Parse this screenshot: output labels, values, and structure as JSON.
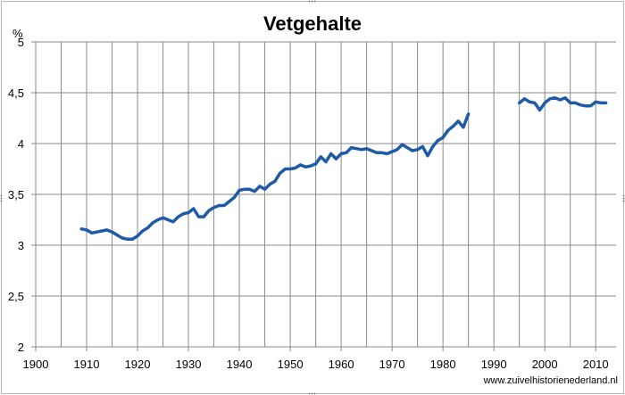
{
  "chart_data": {
    "type": "line",
    "title": "Vetgehalte",
    "ylabel": "%",
    "xlabel": "",
    "xlim": [
      1900,
      2012
    ],
    "ylim": [
      2,
      5
    ],
    "grid": true,
    "x_ticks": [
      "1900",
      "1910",
      "1920",
      "1930",
      "1940",
      "1950",
      "1960",
      "1970",
      "1980",
      "1990",
      "2000",
      "2010"
    ],
    "y_ticks": [
      "2",
      "2,5",
      "3",
      "3,5",
      "4",
      "4,5",
      "5"
    ],
    "line_color": "#1f5aa6",
    "series": [
      {
        "name": "",
        "points": [
          [
            1909,
            3.16
          ],
          [
            1910,
            3.15
          ],
          [
            1911,
            3.12
          ],
          [
            1912,
            3.13
          ],
          [
            1913,
            3.14
          ],
          [
            1914,
            3.15
          ],
          [
            1915,
            3.13
          ],
          [
            1916,
            3.1
          ],
          [
            1917,
            3.07
          ],
          [
            1918,
            3.06
          ],
          [
            1919,
            3.06
          ],
          [
            1920,
            3.09
          ],
          [
            1921,
            3.14
          ],
          [
            1922,
            3.17
          ],
          [
            1923,
            3.22
          ],
          [
            1924,
            3.25
          ],
          [
            1925,
            3.27
          ],
          [
            1926,
            3.25
          ],
          [
            1927,
            3.23
          ],
          [
            1928,
            3.28
          ],
          [
            1929,
            3.31
          ],
          [
            1930,
            3.32
          ],
          [
            1931,
            3.36
          ],
          [
            1932,
            3.28
          ],
          [
            1933,
            3.28
          ],
          [
            1934,
            3.34
          ],
          [
            1935,
            3.37
          ],
          [
            1936,
            3.39
          ],
          [
            1937,
            3.39
          ],
          [
            1938,
            3.43
          ],
          [
            1939,
            3.47
          ],
          [
            1940,
            3.54
          ],
          [
            1941,
            3.55
          ],
          [
            1942,
            3.55
          ],
          [
            1943,
            3.53
          ],
          [
            1944,
            3.58
          ],
          [
            1945,
            3.55
          ],
          [
            1946,
            3.6
          ],
          [
            1947,
            3.63
          ],
          [
            1948,
            3.71
          ],
          [
            1949,
            3.75
          ],
          [
            1950,
            3.75
          ],
          [
            1951,
            3.76
          ],
          [
            1952,
            3.79
          ],
          [
            1953,
            3.77
          ],
          [
            1954,
            3.78
          ],
          [
            1955,
            3.8
          ],
          [
            1956,
            3.87
          ],
          [
            1957,
            3.82
          ],
          [
            1958,
            3.9
          ],
          [
            1959,
            3.85
          ],
          [
            1960,
            3.9
          ],
          [
            1961,
            3.91
          ],
          [
            1962,
            3.96
          ],
          [
            1963,
            3.95
          ],
          [
            1964,
            3.94
          ],
          [
            1965,
            3.95
          ],
          [
            1966,
            3.93
          ],
          [
            1967,
            3.91
          ],
          [
            1968,
            3.91
          ],
          [
            1969,
            3.9
          ],
          [
            1970,
            3.92
          ],
          [
            1971,
            3.94
          ],
          [
            1972,
            3.99
          ],
          [
            1973,
            3.96
          ],
          [
            1974,
            3.93
          ],
          [
            1975,
            3.94
          ],
          [
            1976,
            3.97
          ],
          [
            1977,
            3.88
          ],
          [
            1978,
            3.97
          ],
          [
            1979,
            4.03
          ],
          [
            1980,
            4.06
          ],
          [
            1981,
            4.13
          ],
          [
            1982,
            4.17
          ],
          [
            1983,
            4.22
          ],
          [
            1984,
            4.16
          ],
          [
            1985,
            4.29
          ]
        ]
      },
      {
        "name": "",
        "points": [
          [
            1995,
            4.4
          ],
          [
            1996,
            4.44
          ],
          [
            1997,
            4.41
          ],
          [
            1998,
            4.4
          ],
          [
            1999,
            4.33
          ],
          [
            2000,
            4.4
          ],
          [
            2001,
            4.44
          ],
          [
            2002,
            4.45
          ],
          [
            2003,
            4.43
          ],
          [
            2004,
            4.45
          ],
          [
            2005,
            4.4
          ],
          [
            2006,
            4.4
          ],
          [
            2007,
            4.38
          ],
          [
            2008,
            4.37
          ],
          [
            2009,
            4.37
          ],
          [
            2010,
            4.41
          ],
          [
            2011,
            4.4
          ],
          [
            2012,
            4.4
          ]
        ]
      }
    ]
  },
  "credit": "www.zuivelhistorienederland.nl"
}
